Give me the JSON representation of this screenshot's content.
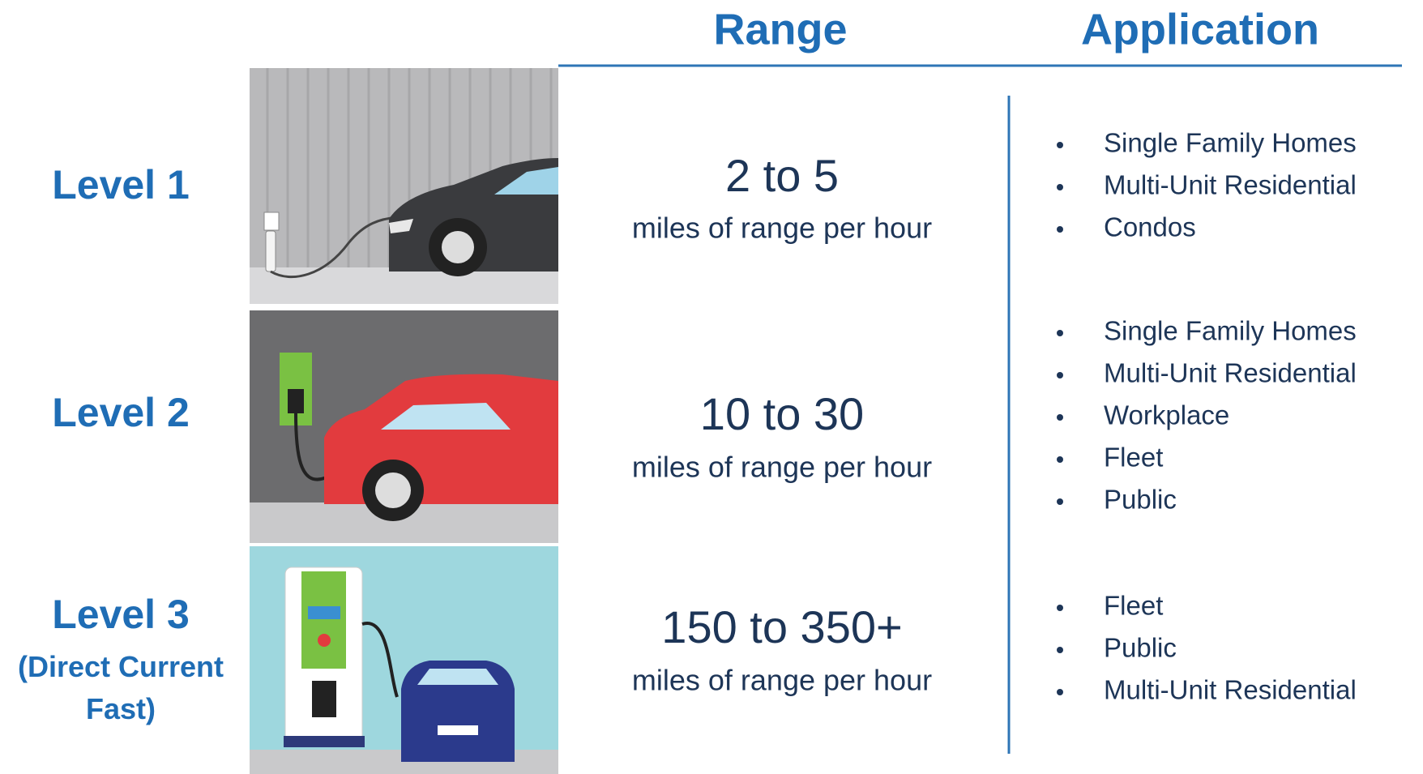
{
  "headers": {
    "range": "Range",
    "application": "Application"
  },
  "rows": [
    {
      "level": "Level 1",
      "range": "2 to 5",
      "range_unit": "miles of range per hour",
      "applications": [
        "Single Family Homes",
        "Multi-Unit Residential",
        "Condos"
      ]
    },
    {
      "level": "Level 2",
      "range": "10 to 30",
      "range_unit": "miles of range per hour",
      "applications": [
        "Single Family Homes",
        "Multi-Unit Residential",
        "Workplace",
        "Fleet",
        "Public"
      ]
    },
    {
      "level": "Level 3",
      "level_note": "(Direct Current Fast)",
      "range": "150 to 350+",
      "range_unit": "miles of range per hour",
      "applications": [
        "Fleet",
        "Public",
        "Multi-Unit Residential"
      ]
    }
  ]
}
